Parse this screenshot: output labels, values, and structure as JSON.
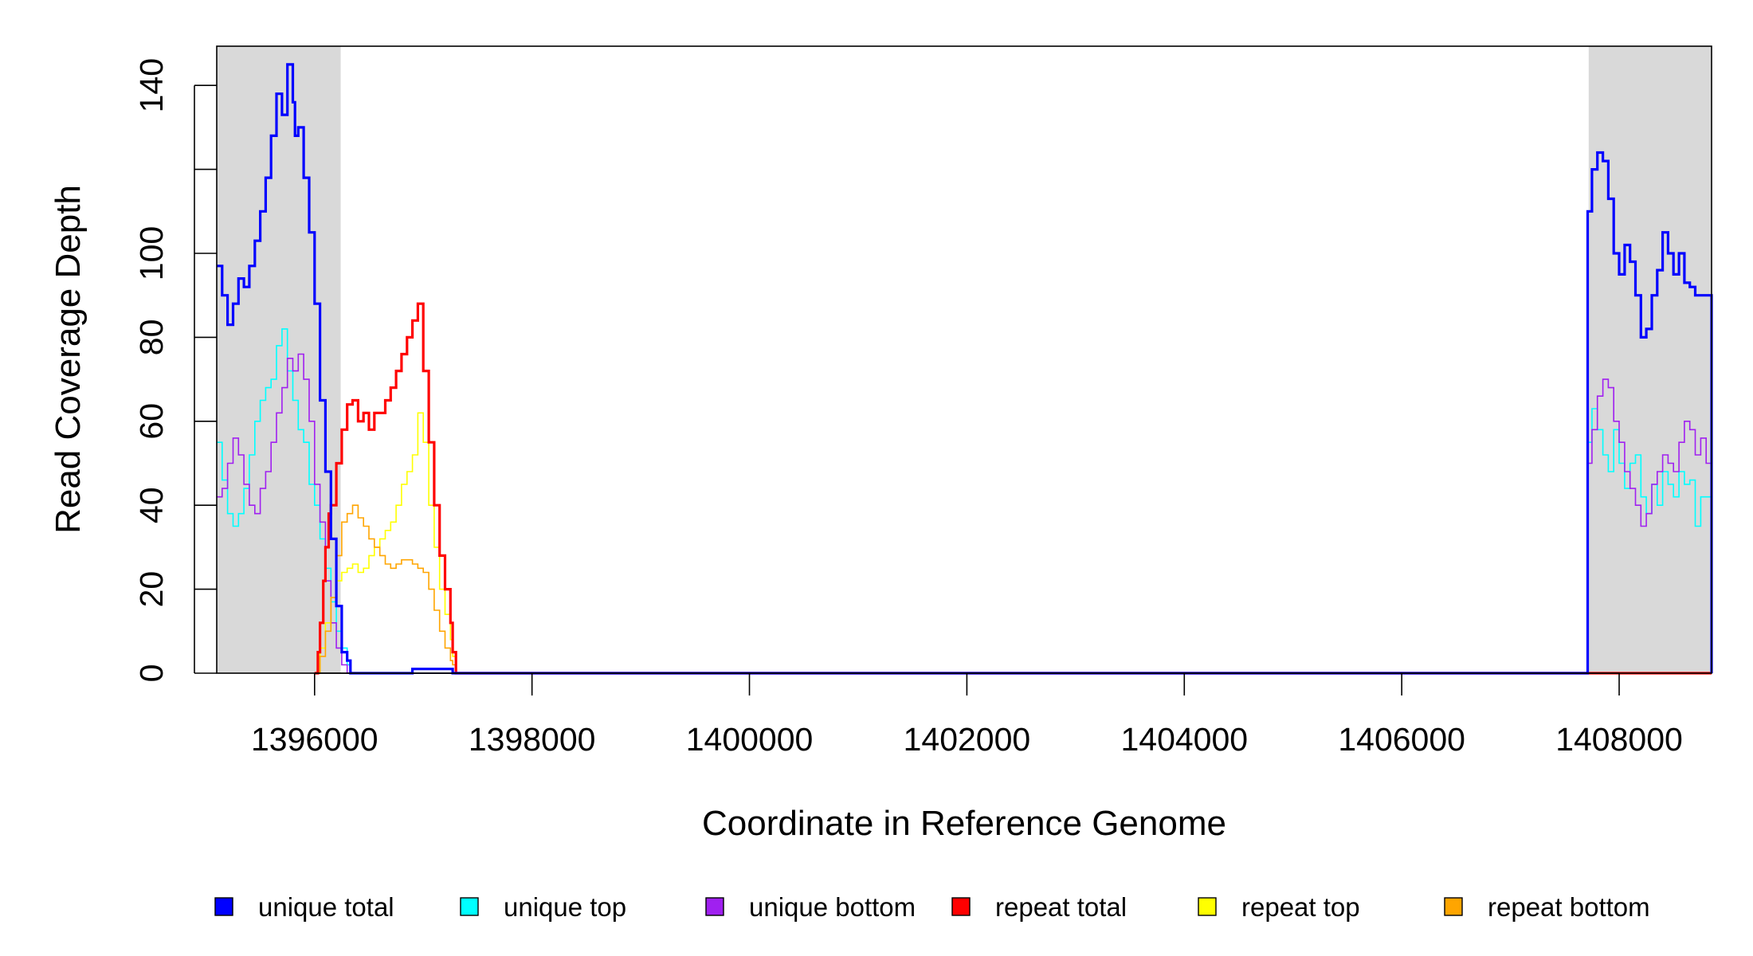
{
  "chart_data": {
    "type": "line",
    "title": "",
    "xlabel": "Coordinate in Reference Genome",
    "ylabel": "Read Coverage Depth",
    "xlim": [
      1395100,
      1408850
    ],
    "ylim": [
      0,
      150
    ],
    "x_ticks": [
      1396000,
      1398000,
      1400000,
      1402000,
      1404000,
      1406000,
      1408000
    ],
    "x_tick_labels": [
      "1396000",
      "1398000",
      "1400000",
      "1402000",
      "1404000",
      "1406000",
      "1408000"
    ],
    "y_ticks": [
      0,
      20,
      40,
      60,
      80,
      100,
      120,
      140
    ],
    "y_tick_labels": [
      "0",
      "20",
      "40",
      "60",
      "80",
      "100",
      "",
      "140"
    ],
    "grid": false,
    "legend_position": "bottom",
    "shaded_regions": [
      {
        "x_start": 1395100,
        "x_end": 1396240,
        "color": "#d9d9d9"
      },
      {
        "x_start": 1407720,
        "x_end": 1408850,
        "color": "#d9d9d9"
      }
    ],
    "series": [
      {
        "name": "unique total",
        "color": "#0000ff",
        "stroke": "bold",
        "x": [
          1395100,
          1395150,
          1395200,
          1395250,
          1395300,
          1395350,
          1395400,
          1395450,
          1395500,
          1395550,
          1395600,
          1395650,
          1395700,
          1395750,
          1395800,
          1395820,
          1395850,
          1395900,
          1395950,
          1396000,
          1396050,
          1396100,
          1396150,
          1396200,
          1396250,
          1396300,
          1396330,
          1396350,
          1396900,
          1396950,
          1397000,
          1397270,
          1397300,
          1407700,
          1407710,
          1407750,
          1407800,
          1407850,
          1407900,
          1407950,
          1408000,
          1408050,
          1408100,
          1408150,
          1408200,
          1408250,
          1408300,
          1408350,
          1408400,
          1408450,
          1408500,
          1408550,
          1408600,
          1408650,
          1408700,
          1408750,
          1408800,
          1408850
        ],
        "y": [
          97,
          90,
          83,
          88,
          94,
          92,
          97,
          103,
          110,
          118,
          128,
          138,
          133,
          145,
          136,
          128,
          130,
          118,
          105,
          88,
          65,
          48,
          32,
          16,
          5,
          3,
          0,
          0,
          1,
          1,
          1,
          0,
          0,
          0,
          110,
          120,
          124,
          122,
          113,
          100,
          95,
          102,
          98,
          90,
          80,
          82,
          90,
          96,
          105,
          100,
          95,
          100,
          93,
          92,
          90,
          90,
          90,
          90
        ]
      },
      {
        "name": "unique top",
        "color": "#00ffff",
        "stroke": "thin",
        "x": [
          1395100,
          1395150,
          1395200,
          1395250,
          1395300,
          1395350,
          1395400,
          1395450,
          1395500,
          1395550,
          1395600,
          1395650,
          1395700,
          1395750,
          1395800,
          1395850,
          1395900,
          1395950,
          1396000,
          1396050,
          1396100,
          1396150,
          1396200,
          1396250,
          1396300,
          1396330,
          1407700,
          1407710,
          1407750,
          1407800,
          1407850,
          1407900,
          1407950,
          1408000,
          1408050,
          1408100,
          1408150,
          1408200,
          1408250,
          1408300,
          1408350,
          1408400,
          1408450,
          1408500,
          1408550,
          1408600,
          1408650,
          1408700,
          1408750,
          1408800,
          1408850
        ],
        "y": [
          55,
          46,
          38,
          35,
          38,
          44,
          52,
          60,
          65,
          68,
          70,
          78,
          82,
          72,
          65,
          58,
          55,
          45,
          40,
          32,
          25,
          17,
          10,
          6,
          2,
          0,
          0,
          55,
          63,
          58,
          52,
          48,
          58,
          50,
          44,
          50,
          52,
          42,
          38,
          45,
          40,
          48,
          45,
          42,
          48,
          45,
          46,
          35,
          42,
          42,
          43
        ]
      },
      {
        "name": "unique bottom",
        "color": "#a020f0",
        "stroke": "thin",
        "x": [
          1395100,
          1395150,
          1395200,
          1395250,
          1395300,
          1395350,
          1395400,
          1395450,
          1395500,
          1395550,
          1395600,
          1395650,
          1395700,
          1395750,
          1395800,
          1395850,
          1395900,
          1395950,
          1396000,
          1396050,
          1396100,
          1396150,
          1396200,
          1396250,
          1396300,
          1396330,
          1407700,
          1407710,
          1407750,
          1407800,
          1407850,
          1407900,
          1407950,
          1408000,
          1408050,
          1408100,
          1408150,
          1408200,
          1408250,
          1408300,
          1408350,
          1408400,
          1408450,
          1408500,
          1408550,
          1408600,
          1408650,
          1408700,
          1408750,
          1408800,
          1408850
        ],
        "y": [
          42,
          44,
          50,
          56,
          52,
          45,
          40,
          38,
          44,
          48,
          55,
          62,
          68,
          75,
          72,
          76,
          70,
          60,
          45,
          36,
          22,
          12,
          6,
          2,
          0,
          0,
          0,
          50,
          58,
          66,
          70,
          68,
          60,
          55,
          48,
          44,
          40,
          35,
          38,
          45,
          48,
          52,
          50,
          48,
          55,
          60,
          58,
          52,
          56,
          50,
          48
        ]
      },
      {
        "name": "repeat total",
        "color": "#ff0000",
        "stroke": "bold",
        "x": [
          1396000,
          1396030,
          1396050,
          1396080,
          1396100,
          1396130,
          1396150,
          1396200,
          1396250,
          1396300,
          1396350,
          1396400,
          1396450,
          1396500,
          1396550,
          1396600,
          1396650,
          1396700,
          1396750,
          1396800,
          1396850,
          1396900,
          1396950,
          1397000,
          1397050,
          1397100,
          1397150,
          1397200,
          1397250,
          1397270,
          1397300
        ],
        "y": [
          0,
          5,
          12,
          22,
          30,
          38,
          40,
          50,
          58,
          64,
          65,
          60,
          62,
          58,
          62,
          62,
          65,
          68,
          72,
          76,
          80,
          84,
          88,
          72,
          55,
          40,
          28,
          20,
          12,
          5,
          0
        ]
      },
      {
        "name": "repeat top",
        "color": "#ffff00",
        "stroke": "thin",
        "x": [
          1396000,
          1396050,
          1396100,
          1396150,
          1396200,
          1396250,
          1396300,
          1396350,
          1396400,
          1396450,
          1396500,
          1396550,
          1396600,
          1396650,
          1396700,
          1396750,
          1396800,
          1396850,
          1396900,
          1396950,
          1397000,
          1397050,
          1397100,
          1397150,
          1397200,
          1397250,
          1397270,
          1397300
        ],
        "y": [
          0,
          6,
          12,
          18,
          22,
          24,
          25,
          26,
          24,
          25,
          28,
          30,
          32,
          34,
          36,
          40,
          45,
          48,
          52,
          62,
          55,
          40,
          30,
          20,
          14,
          8,
          4,
          0
        ]
      },
      {
        "name": "repeat bottom",
        "color": "#ffa500",
        "stroke": "thin",
        "x": [
          1396000,
          1396050,
          1396100,
          1396150,
          1396200,
          1396250,
          1396300,
          1396350,
          1396400,
          1396450,
          1396500,
          1396550,
          1396600,
          1396650,
          1396700,
          1396750,
          1396800,
          1396850,
          1396900,
          1396950,
          1397000,
          1397050,
          1397100,
          1397150,
          1397200,
          1397250,
          1397270,
          1397300
        ],
        "y": [
          0,
          4,
          10,
          18,
          28,
          36,
          38,
          40,
          37,
          35,
          32,
          30,
          28,
          26,
          25,
          26,
          27,
          27,
          26,
          25,
          24,
          20,
          15,
          10,
          6,
          3,
          2,
          0
        ]
      }
    ]
  }
}
